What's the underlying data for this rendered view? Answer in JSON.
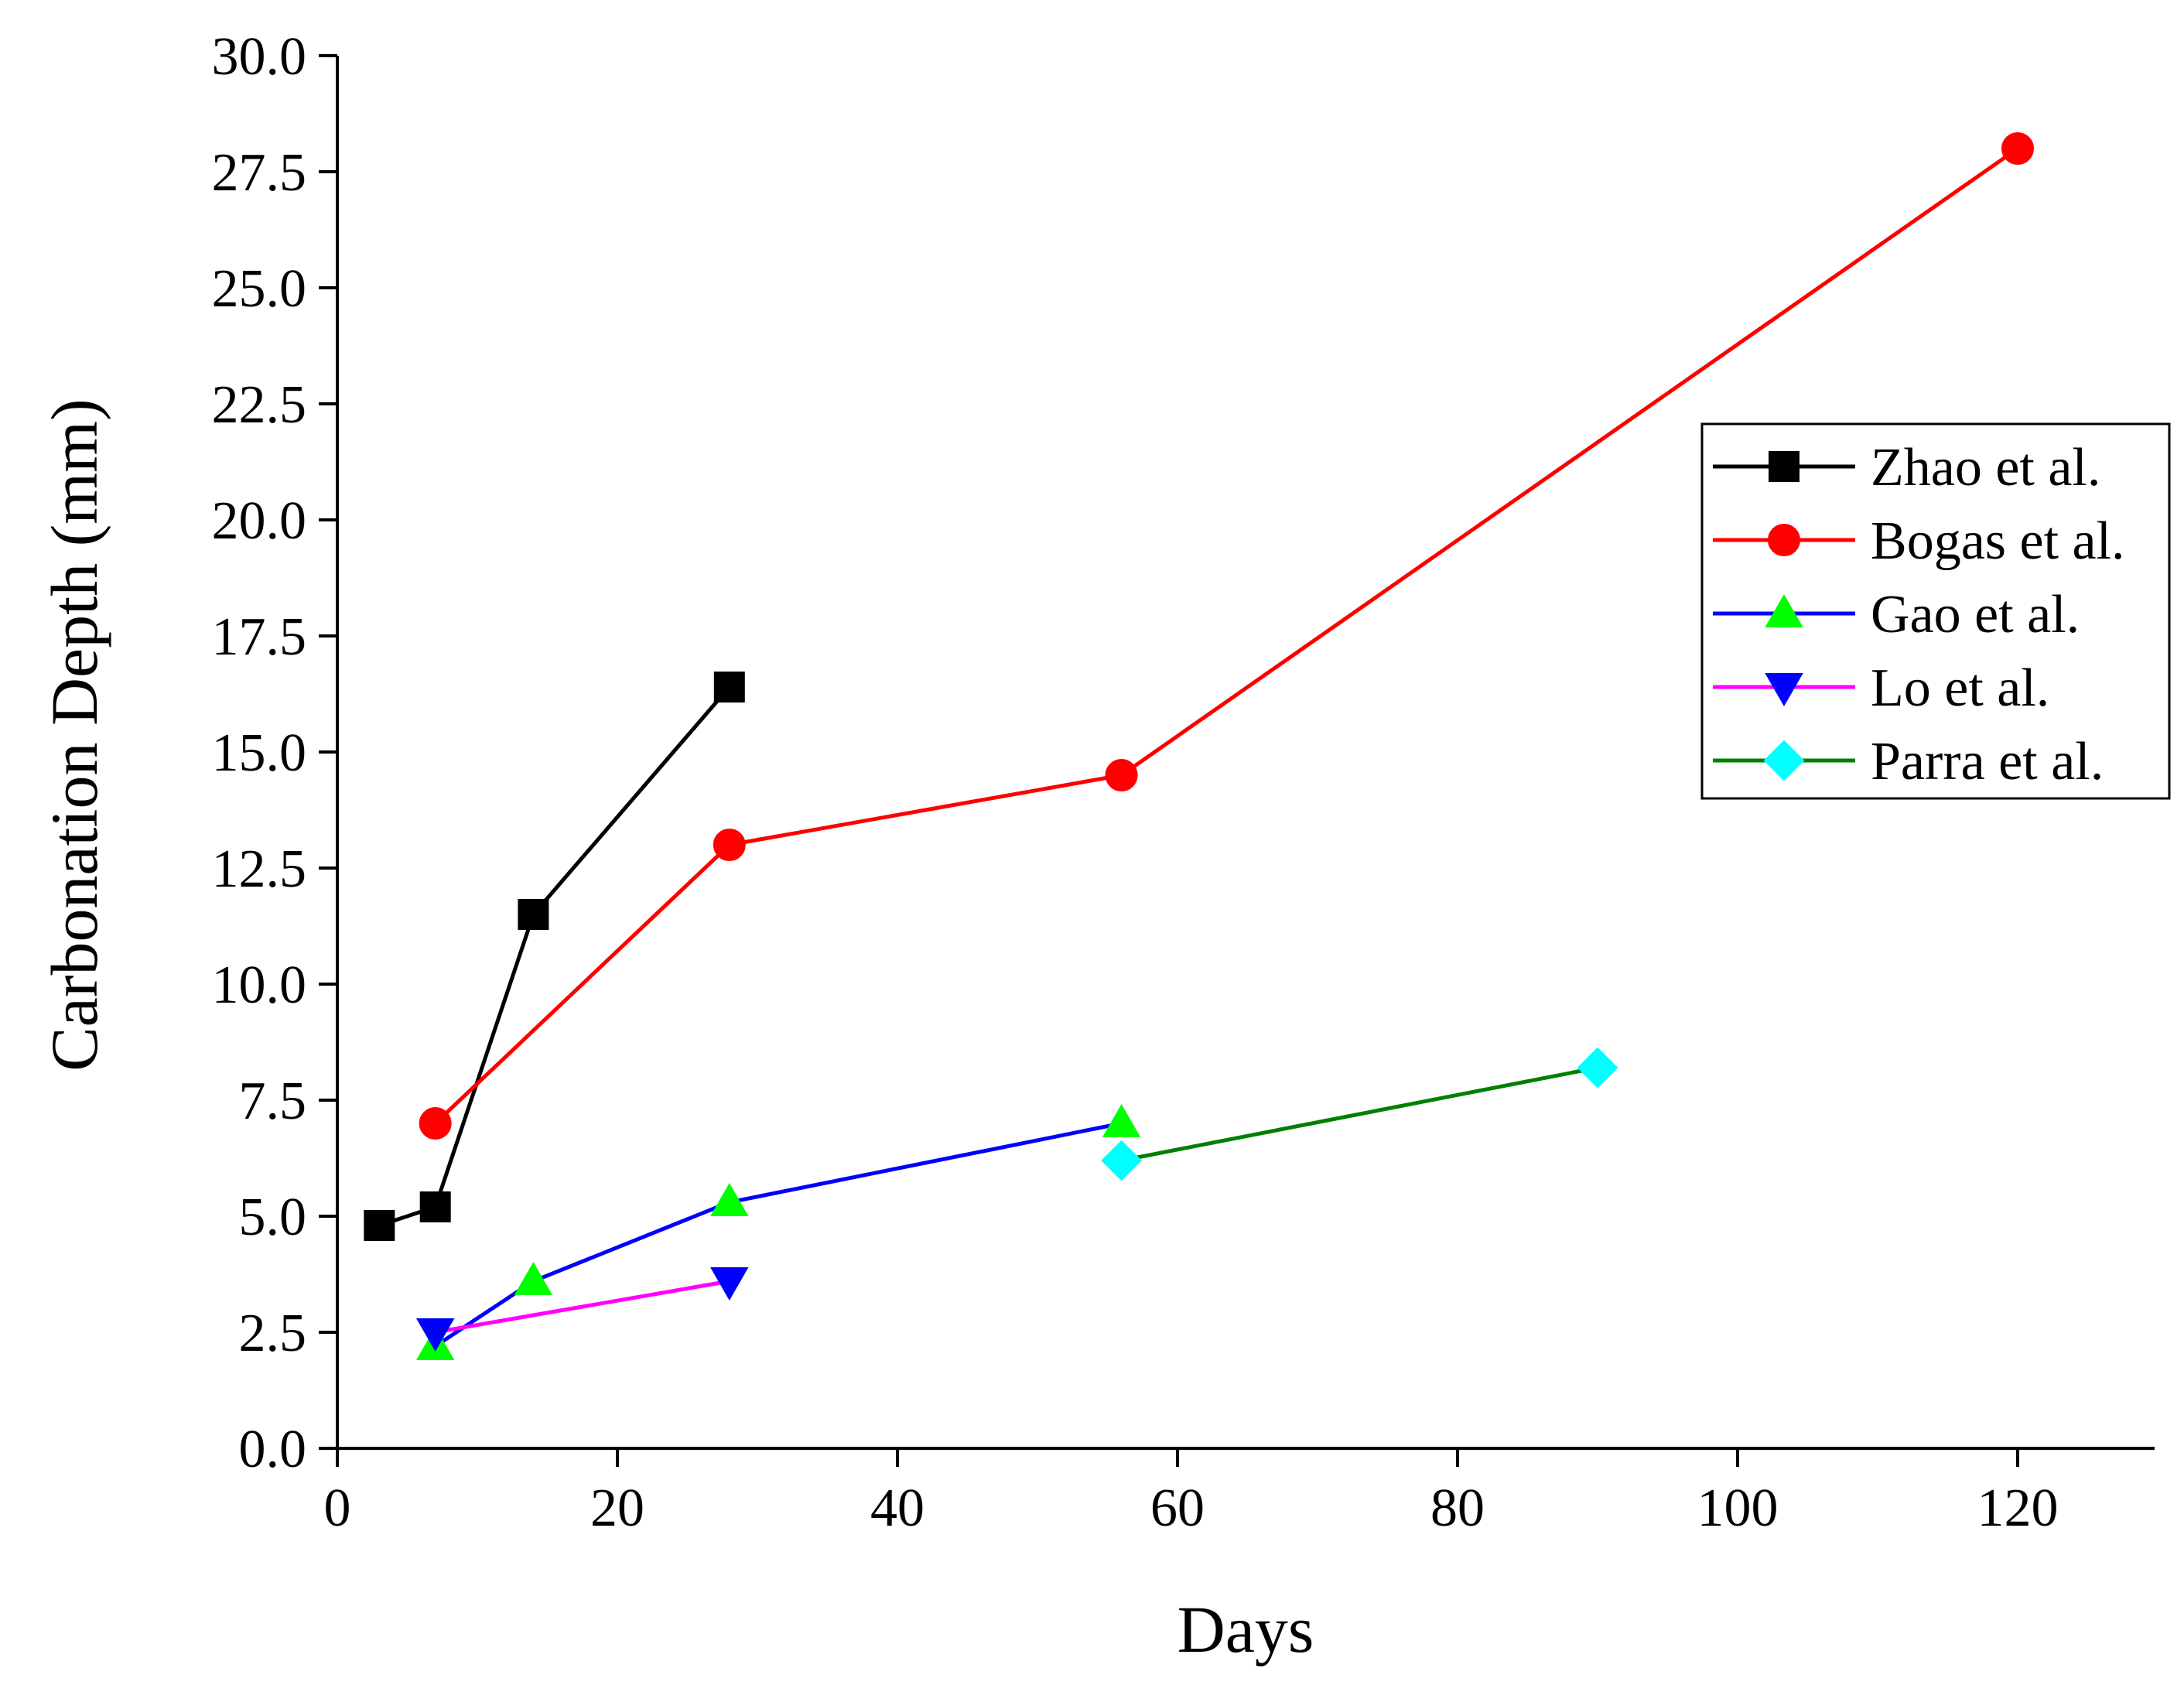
{
  "chart_data": {
    "type": "line",
    "title": "",
    "xlabel": "Days",
    "ylabel": "Carbonation Depth (mm)",
    "xlim": [
      0,
      130
    ],
    "ylim": [
      0,
      30
    ],
    "x_ticks": [
      0,
      20,
      40,
      60,
      80,
      100,
      120
    ],
    "x_tick_labels": [
      "0",
      "20",
      "40",
      "60",
      "80",
      "100",
      "120"
    ],
    "y_ticks": [
      0,
      2.5,
      5,
      7.5,
      10,
      12.5,
      15,
      17.5,
      20,
      22.5,
      25,
      27.5,
      30
    ],
    "y_tick_labels": [
      "0.0",
      "2.5",
      "5.0",
      "7.5",
      "10.0",
      "12.5",
      "15.0",
      "17.5",
      "20.0",
      "22.5",
      "25.0",
      "27.5",
      "30.0"
    ],
    "grid": false,
    "legend_position": "right",
    "series": [
      {
        "name": "Zhao et al.",
        "line_color": "#000000",
        "marker": "square",
        "marker_color": "#000000",
        "x": [
          3,
          7,
          14,
          28
        ],
        "y": [
          4.8,
          5.2,
          11.5,
          16.4
        ]
      },
      {
        "name": "Bogas et al.",
        "line_color": "#ff0000",
        "marker": "circle",
        "marker_color": "#ff0000",
        "x": [
          7,
          28,
          56,
          120
        ],
        "y": [
          7.0,
          13.0,
          14.5,
          28.0
        ]
      },
      {
        "name": "Gao et al.",
        "line_color": "#0000ff",
        "marker": "triangle-up",
        "marker_color": "#00ff00",
        "x": [
          7,
          14,
          28,
          56
        ],
        "y": [
          2.2,
          3.6,
          5.3,
          7.0
        ]
      },
      {
        "name": "Lo et al.",
        "line_color": "#ff00ff",
        "marker": "triangle-down",
        "marker_color": "#0000ff",
        "x": [
          7,
          28
        ],
        "y": [
          2.5,
          3.6
        ]
      },
      {
        "name": "Parra et al.",
        "line_color": "#008000",
        "marker": "diamond",
        "marker_color": "#00ffff",
        "x": [
          56,
          90
        ],
        "y": [
          6.2,
          8.2
        ]
      }
    ]
  }
}
